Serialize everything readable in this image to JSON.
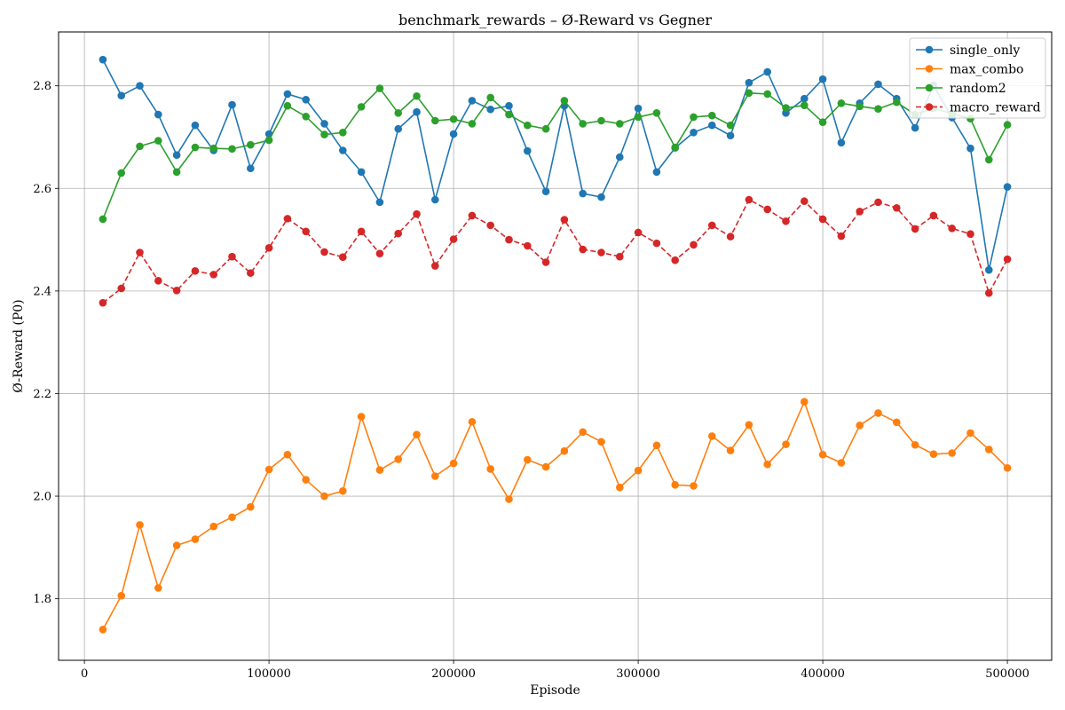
{
  "chart_data": {
    "type": "line",
    "title": "benchmark_rewards – Ø-Reward vs Gegner",
    "xlabel": "Episode",
    "ylabel": "Ø-Reward (P0)",
    "xlim": [
      -14000,
      524000
    ],
    "ylim": [
      1.68,
      2.905
    ],
    "xticks": [
      0,
      100000,
      200000,
      300000,
      400000,
      500000
    ],
    "yticks": [
      1.8,
      2.0,
      2.2,
      2.4,
      2.6,
      2.8
    ],
    "xtick_labels": [
      "0",
      "100000",
      "200000",
      "300000",
      "400000",
      "500000"
    ],
    "ytick_labels": [
      "1.8",
      "2.0",
      "2.2",
      "2.4",
      "2.6",
      "2.8"
    ],
    "grid": true,
    "legend_position": "top-right",
    "x": [
      10000,
      20000,
      30000,
      40000,
      50000,
      60000,
      70000,
      80000,
      90000,
      100000,
      110000,
      120000,
      130000,
      140000,
      150000,
      160000,
      170000,
      180000,
      190000,
      200000,
      210000,
      220000,
      230000,
      240000,
      250000,
      260000,
      270000,
      280000,
      290000,
      300000,
      310000,
      320000,
      330000,
      340000,
      350000,
      360000,
      370000,
      380000,
      390000,
      400000,
      410000,
      420000,
      430000,
      440000,
      450000,
      460000,
      470000,
      480000,
      490000,
      500000
    ],
    "series": [
      {
        "name": "single_only",
        "color": "#1f77b4",
        "dash": "solid",
        "values": [
          2.851,
          2.781,
          2.8,
          2.744,
          2.665,
          2.723,
          2.674,
          2.763,
          2.639,
          2.706,
          2.784,
          2.773,
          2.726,
          2.674,
          2.632,
          2.573,
          2.716,
          2.749,
          2.578,
          2.706,
          2.771,
          2.754,
          2.761,
          2.673,
          2.594,
          2.761,
          2.59,
          2.583,
          2.661,
          2.756,
          2.632,
          2.679,
          2.709,
          2.723,
          2.703,
          2.806,
          2.827,
          2.747,
          2.775,
          2.813,
          2.689,
          2.766,
          2.803,
          2.775,
          2.718,
          2.801,
          2.738,
          2.678,
          2.441,
          2.603
        ]
      },
      {
        "name": "max_combo",
        "color": "#ff7f0e",
        "dash": "solid",
        "values": [
          1.74,
          1.806,
          1.944,
          1.821,
          1.904,
          1.916,
          1.941,
          1.959,
          1.979,
          2.052,
          2.081,
          2.032,
          2.0,
          2.01,
          2.155,
          2.051,
          2.072,
          2.12,
          2.039,
          2.064,
          2.145,
          2.053,
          1.994,
          2.071,
          2.057,
          2.088,
          2.125,
          2.106,
          2.017,
          2.05,
          2.099,
          2.022,
          2.02,
          2.117,
          2.089,
          2.139,
          2.062,
          2.101,
          2.184,
          2.081,
          2.065,
          2.138,
          2.162,
          2.144,
          2.1,
          2.082,
          2.084,
          2.123,
          2.091,
          2.055
        ]
      },
      {
        "name": "random2",
        "color": "#2ca02c",
        "dash": "solid",
        "values": [
          2.54,
          2.63,
          2.682,
          2.693,
          2.632,
          2.68,
          2.678,
          2.677,
          2.685,
          2.694,
          2.761,
          2.74,
          2.705,
          2.709,
          2.759,
          2.795,
          2.747,
          2.78,
          2.732,
          2.735,
          2.726,
          2.777,
          2.744,
          2.723,
          2.716,
          2.771,
          2.726,
          2.732,
          2.726,
          2.739,
          2.747,
          2.68,
          2.739,
          2.742,
          2.723,
          2.786,
          2.784,
          2.757,
          2.762,
          2.729,
          2.766,
          2.76,
          2.755,
          2.768,
          2.744,
          2.756,
          2.746,
          2.736,
          2.656,
          2.724
        ]
      },
      {
        "name": "macro_reward",
        "color": "#d62728",
        "dash": "dashed",
        "values": [
          2.377,
          2.405,
          2.475,
          2.42,
          2.401,
          2.439,
          2.432,
          2.467,
          2.435,
          2.484,
          2.541,
          2.516,
          2.476,
          2.466,
          2.516,
          2.473,
          2.512,
          2.55,
          2.449,
          2.501,
          2.547,
          2.528,
          2.5,
          2.488,
          2.456,
          2.539,
          2.481,
          2.475,
          2.467,
          2.514,
          2.493,
          2.46,
          2.49,
          2.528,
          2.506,
          2.578,
          2.559,
          2.536,
          2.575,
          2.54,
          2.507,
          2.555,
          2.573,
          2.562,
          2.521,
          2.547,
          2.522,
          2.511,
          2.396,
          2.462
        ]
      }
    ]
  }
}
